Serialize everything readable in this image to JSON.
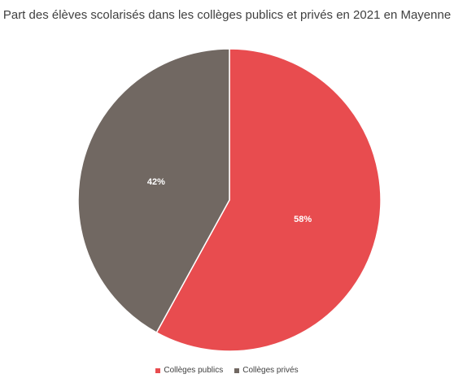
{
  "chart_data": {
    "type": "pie",
    "title": "Part des élèves scolarisés dans les collèges publics et privés en 2021 en Mayenne",
    "slices": [
      {
        "name": "Collèges publics",
        "value": 58,
        "label": "58%",
        "color": "#e84c4f"
      },
      {
        "name": "Collèges privés",
        "value": 42,
        "label": "42%",
        "color": "#716862"
      }
    ],
    "legend_position": "bottom"
  }
}
